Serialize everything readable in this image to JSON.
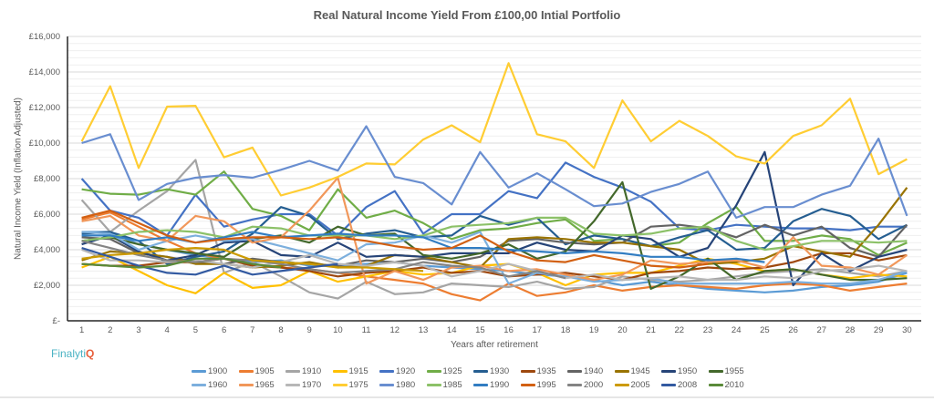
{
  "chart_data": {
    "type": "line",
    "title": "Real Natural Income Yield From £100,00 Intial Portfolio",
    "xlabel": "Years after retirement",
    "ylabel": "Natural Income Yield (Inflation  Adjusted)",
    "ylim": [
      0,
      16000
    ],
    "y_ticks": [
      0,
      2000,
      4000,
      6000,
      8000,
      10000,
      12000,
      14000,
      16000
    ],
    "y_tick_labels": [
      "£-",
      "£2,000",
      "£4,000",
      "£6,000",
      "£8,000",
      "£10,000",
      "£12,000",
      "£14,000",
      "£16,000"
    ],
    "categories": [
      1,
      2,
      3,
      4,
      5,
      6,
      7,
      8,
      9,
      10,
      11,
      12,
      13,
      14,
      15,
      16,
      17,
      18,
      19,
      20,
      21,
      22,
      23,
      24,
      25,
      26,
      27,
      28,
      29,
      30
    ],
    "grid": true,
    "legend": "bottom",
    "series": [
      {
        "name": "1900",
        "color": "#5B9BD5",
        "values": [
          5000,
          5000,
          4300,
          4000,
          3700,
          3500,
          3300,
          3400,
          3100,
          3100,
          3200,
          3300,
          3100,
          3000,
          2900,
          2800,
          2600,
          2500,
          2300,
          2000,
          2200,
          2000,
          1800,
          1700,
          1600,
          1700,
          1900,
          2000,
          2200,
          2700
        ]
      },
      {
        "name": "1905",
        "color": "#ED7D31",
        "values": [
          5700,
          6100,
          5300,
          4500,
          3800,
          3500,
          3200,
          3000,
          2900,
          2700,
          2500,
          2300,
          2100,
          1500,
          1150,
          2100,
          1400,
          1600,
          2000,
          1700,
          1900,
          2000,
          1900,
          1800,
          2000,
          2100,
          2000,
          1700,
          1900,
          2100
        ]
      },
      {
        "name": "1910",
        "color": "#A5A5A5",
        "values": [
          6800,
          5000,
          6200,
          7300,
          9050,
          2700,
          3300,
          2500,
          1600,
          1250,
          2200,
          1500,
          1600,
          2100,
          2000,
          1900,
          2200,
          1800,
          1900,
          2500,
          2300,
          2200,
          2300,
          2500,
          2700,
          2800,
          2900,
          2700,
          2500,
          2800
        ]
      },
      {
        "name": "1915",
        "color": "#FFC000",
        "values": [
          3000,
          3600,
          2800,
          2000,
          1550,
          2700,
          1850,
          2000,
          2800,
          2200,
          2500,
          2800,
          2600,
          2700,
          3100,
          3200,
          2700,
          2000,
          2600,
          2700,
          2700,
          3100,
          3500,
          3200,
          2800,
          2900,
          2600,
          2400,
          2600,
          2500
        ]
      },
      {
        "name": "1920",
        "color": "#4472C4",
        "values": [
          8000,
          6200,
          5800,
          4800,
          7100,
          5300,
          5700,
          6000,
          6000,
          4800,
          6400,
          7300,
          4900,
          6000,
          6000,
          7300,
          6900,
          8900,
          8100,
          7500,
          6700,
          5200,
          5100,
          5400,
          5300,
          5200,
          5200,
          5100,
          5300,
          5300
        ]
      },
      {
        "name": "1925",
        "color": "#70AD47",
        "values": [
          7400,
          7150,
          7100,
          7400,
          7100,
          8400,
          6300,
          5900,
          5100,
          7400,
          5800,
          6200,
          5500,
          4600,
          5100,
          5200,
          5500,
          5700,
          4500,
          4600,
          4200,
          4400,
          5500,
          6400,
          4500,
          4500,
          4800,
          4600,
          3700,
          4400
        ]
      },
      {
        "name": "1930",
        "color": "#255E91",
        "values": [
          4900,
          5000,
          4500,
          3200,
          3600,
          3900,
          4900,
          6400,
          5900,
          4600,
          4900,
          5100,
          4700,
          4800,
          5900,
          5400,
          5800,
          4300,
          4800,
          4600,
          4200,
          4700,
          5100,
          4000,
          4100,
          5600,
          6300,
          5900,
          4600,
          5400
        ]
      },
      {
        "name": "1935",
        "color": "#9E480E",
        "values": [
          3200,
          3100,
          3100,
          3300,
          3300,
          3500,
          3100,
          3000,
          2800,
          2500,
          2700,
          2800,
          3000,
          2700,
          2800,
          2500,
          2600,
          2700,
          2500,
          2300,
          2700,
          2800,
          3000,
          2900,
          3000,
          3300,
          3800,
          3800,
          3400,
          3700
        ]
      },
      {
        "name": "1940",
        "color": "#636363",
        "values": [
          4700,
          4600,
          3800,
          3600,
          3300,
          3200,
          3500,
          3300,
          3200,
          3100,
          3400,
          3300,
          3500,
          3300,
          3600,
          4500,
          4600,
          4400,
          4300,
          4400,
          5300,
          5400,
          5200,
          4700,
          5400,
          4800,
          5300,
          4100,
          3600,
          5400
        ]
      },
      {
        "name": "1945",
        "color": "#997300",
        "values": [
          3400,
          3900,
          3800,
          3600,
          3200,
          3200,
          3000,
          3100,
          3300,
          3000,
          3100,
          3700,
          3600,
          3300,
          3000,
          4600,
          4700,
          4600,
          4400,
          4400,
          4200,
          4000,
          3200,
          3300,
          3500,
          4200,
          3900,
          3600,
          5400,
          7500
        ]
      },
      {
        "name": "1950",
        "color": "#264478",
        "values": [
          4300,
          4800,
          3900,
          3400,
          3700,
          4400,
          4500,
          3700,
          3600,
          4400,
          3600,
          3700,
          3600,
          3800,
          3800,
          3800,
          4400,
          4000,
          3900,
          4800,
          4600,
          3600,
          4100,
          6500,
          9500,
          2000,
          3800,
          2800,
          3600,
          4000
        ]
      },
      {
        "name": "1955",
        "color": "#43682B",
        "values": [
          4500,
          4700,
          4300,
          4000,
          3800,
          3600,
          4600,
          4800,
          4400,
          5300,
          4800,
          4900,
          3700,
          3500,
          3800,
          4300,
          3500,
          3900,
          5600,
          7800,
          1800,
          2500,
          3500,
          2300,
          2800,
          2900,
          2600,
          2300,
          2300,
          2400
        ]
      },
      {
        "name": "1960",
        "color": "#7CAFDD",
        "values": [
          5000,
          4900,
          4000,
          4500,
          4800,
          4500,
          4600,
          4200,
          3800,
          3400,
          4300,
          4400,
          4800,
          4400,
          5000,
          2100,
          2700,
          2500,
          2200,
          2300,
          2400,
          2100,
          2100,
          2100,
          2100,
          2200,
          2100,
          2100,
          2300,
          2800
        ]
      },
      {
        "name": "1965",
        "color": "#F1975A",
        "values": [
          5600,
          5900,
          4800,
          4500,
          5900,
          5600,
          4400,
          4700,
          6200,
          8050,
          2100,
          2800,
          2300,
          3000,
          3100,
          2800,
          2900,
          2600,
          2300,
          2600,
          3400,
          3200,
          3300,
          3400,
          3000,
          4700,
          3100,
          3000,
          2600,
          3700
        ]
      },
      {
        "name": "1970",
        "color": "#B7B7B7",
        "values": [
          4000,
          3400,
          3400,
          3300,
          3400,
          3200,
          3000,
          3300,
          3700,
          3200,
          3100,
          3300,
          3100,
          2500,
          2800,
          3200,
          2800,
          2400,
          2600,
          2300,
          2400,
          2500,
          2300,
          2300,
          2500,
          2400,
          2800,
          2900,
          3100,
          2800
        ]
      },
      {
        "name": "1975",
        "color": "#FFCD33",
        "values": [
          10100,
          13200,
          8600,
          12050,
          12100,
          9200,
          9750,
          7050,
          7500,
          8100,
          8850,
          8800,
          10200,
          11000,
          10050,
          14500,
          10500,
          10100,
          8600,
          12400,
          10100,
          11250,
          10400,
          9250,
          8850,
          10400,
          11000,
          12500,
          8250,
          9100
        ]
      },
      {
        "name": "1980",
        "color": "#698ED0",
        "values": [
          10000,
          10500,
          6800,
          7700,
          8050,
          8200,
          8050,
          8500,
          9000,
          8450,
          10950,
          8100,
          7750,
          6550,
          9500,
          7500,
          8300,
          7400,
          6450,
          6600,
          7250,
          7700,
          8400,
          5800,
          6400,
          6400,
          7100,
          7600,
          10250,
          5900
        ]
      },
      {
        "name": "1985",
        "color": "#8CC168",
        "values": [
          4500,
          4700,
          5000,
          5100,
          5000,
          4700,
          5300,
          5200,
          4800,
          4800,
          4800,
          4600,
          4800,
          5300,
          5400,
          5500,
          5800,
          5800,
          4900,
          4800,
          4900,
          5200,
          5300,
          4500,
          4000,
          4200,
          4500,
          4500,
          4400,
          4500
        ]
      },
      {
        "name": "1990",
        "color": "#327DC2",
        "values": [
          4800,
          4800,
          4500,
          4700,
          4400,
          4700,
          5000,
          4700,
          4800,
          4900,
          4800,
          4800,
          4700,
          4100,
          4100,
          4000,
          3900,
          3800,
          3900,
          3800,
          3600,
          3600,
          3400,
          3500,
          3300,
          null,
          null,
          null,
          null,
          null
        ]
      },
      {
        "name": "1995",
        "color": "#D26012",
        "values": [
          5800,
          6200,
          5500,
          4800,
          4400,
          4600,
          4700,
          4700,
          4600,
          4700,
          4500,
          4200,
          4000,
          4100,
          4800,
          3900,
          3400,
          3300,
          3700,
          3400,
          3100,
          3000,
          3200,
          null,
          null,
          null,
          null,
          null,
          null,
          null
        ]
      },
      {
        "name": "2000",
        "color": "#848484",
        "values": [
          4500,
          4100,
          3700,
          3400,
          3300,
          3500,
          3400,
          3200,
          2900,
          2700,
          2800,
          2900,
          3300,
          3100,
          3000,
          2500,
          2800,
          2400,
          null,
          null,
          null,
          null,
          null,
          null,
          null,
          null,
          null,
          null,
          null,
          null
        ]
      },
      {
        "name": "2005",
        "color": "#CC9A00",
        "values": [
          3500,
          3700,
          3800,
          4000,
          4100,
          4000,
          3400,
          3300,
          3200,
          3000,
          3000,
          2900,
          2800,
          null,
          null,
          null,
          null,
          null,
          null,
          null,
          null,
          null,
          null,
          null,
          null,
          null,
          null,
          null,
          null,
          null
        ]
      },
      {
        "name": "2008",
        "color": "#335AA1",
        "values": [
          4100,
          3600,
          3100,
          2700,
          2600,
          3100,
          2600,
          2800,
          3000,
          3200,
          null,
          null,
          null,
          null,
          null,
          null,
          null,
          null,
          null,
          null,
          null,
          null,
          null,
          null,
          null,
          null,
          null,
          null,
          null,
          null
        ]
      },
      {
        "name": "2010",
        "color": "#5A8A39",
        "values": [
          3200,
          3100,
          3000,
          3100,
          3500,
          3500,
          3200,
          3000,
          null,
          null,
          null,
          null,
          null,
          null,
          null,
          null,
          null,
          null,
          null,
          null,
          null,
          null,
          null,
          null,
          null,
          null,
          null,
          null,
          null,
          null
        ]
      }
    ]
  },
  "logo": {
    "text": "Finalyti",
    "mark": "Q"
  }
}
